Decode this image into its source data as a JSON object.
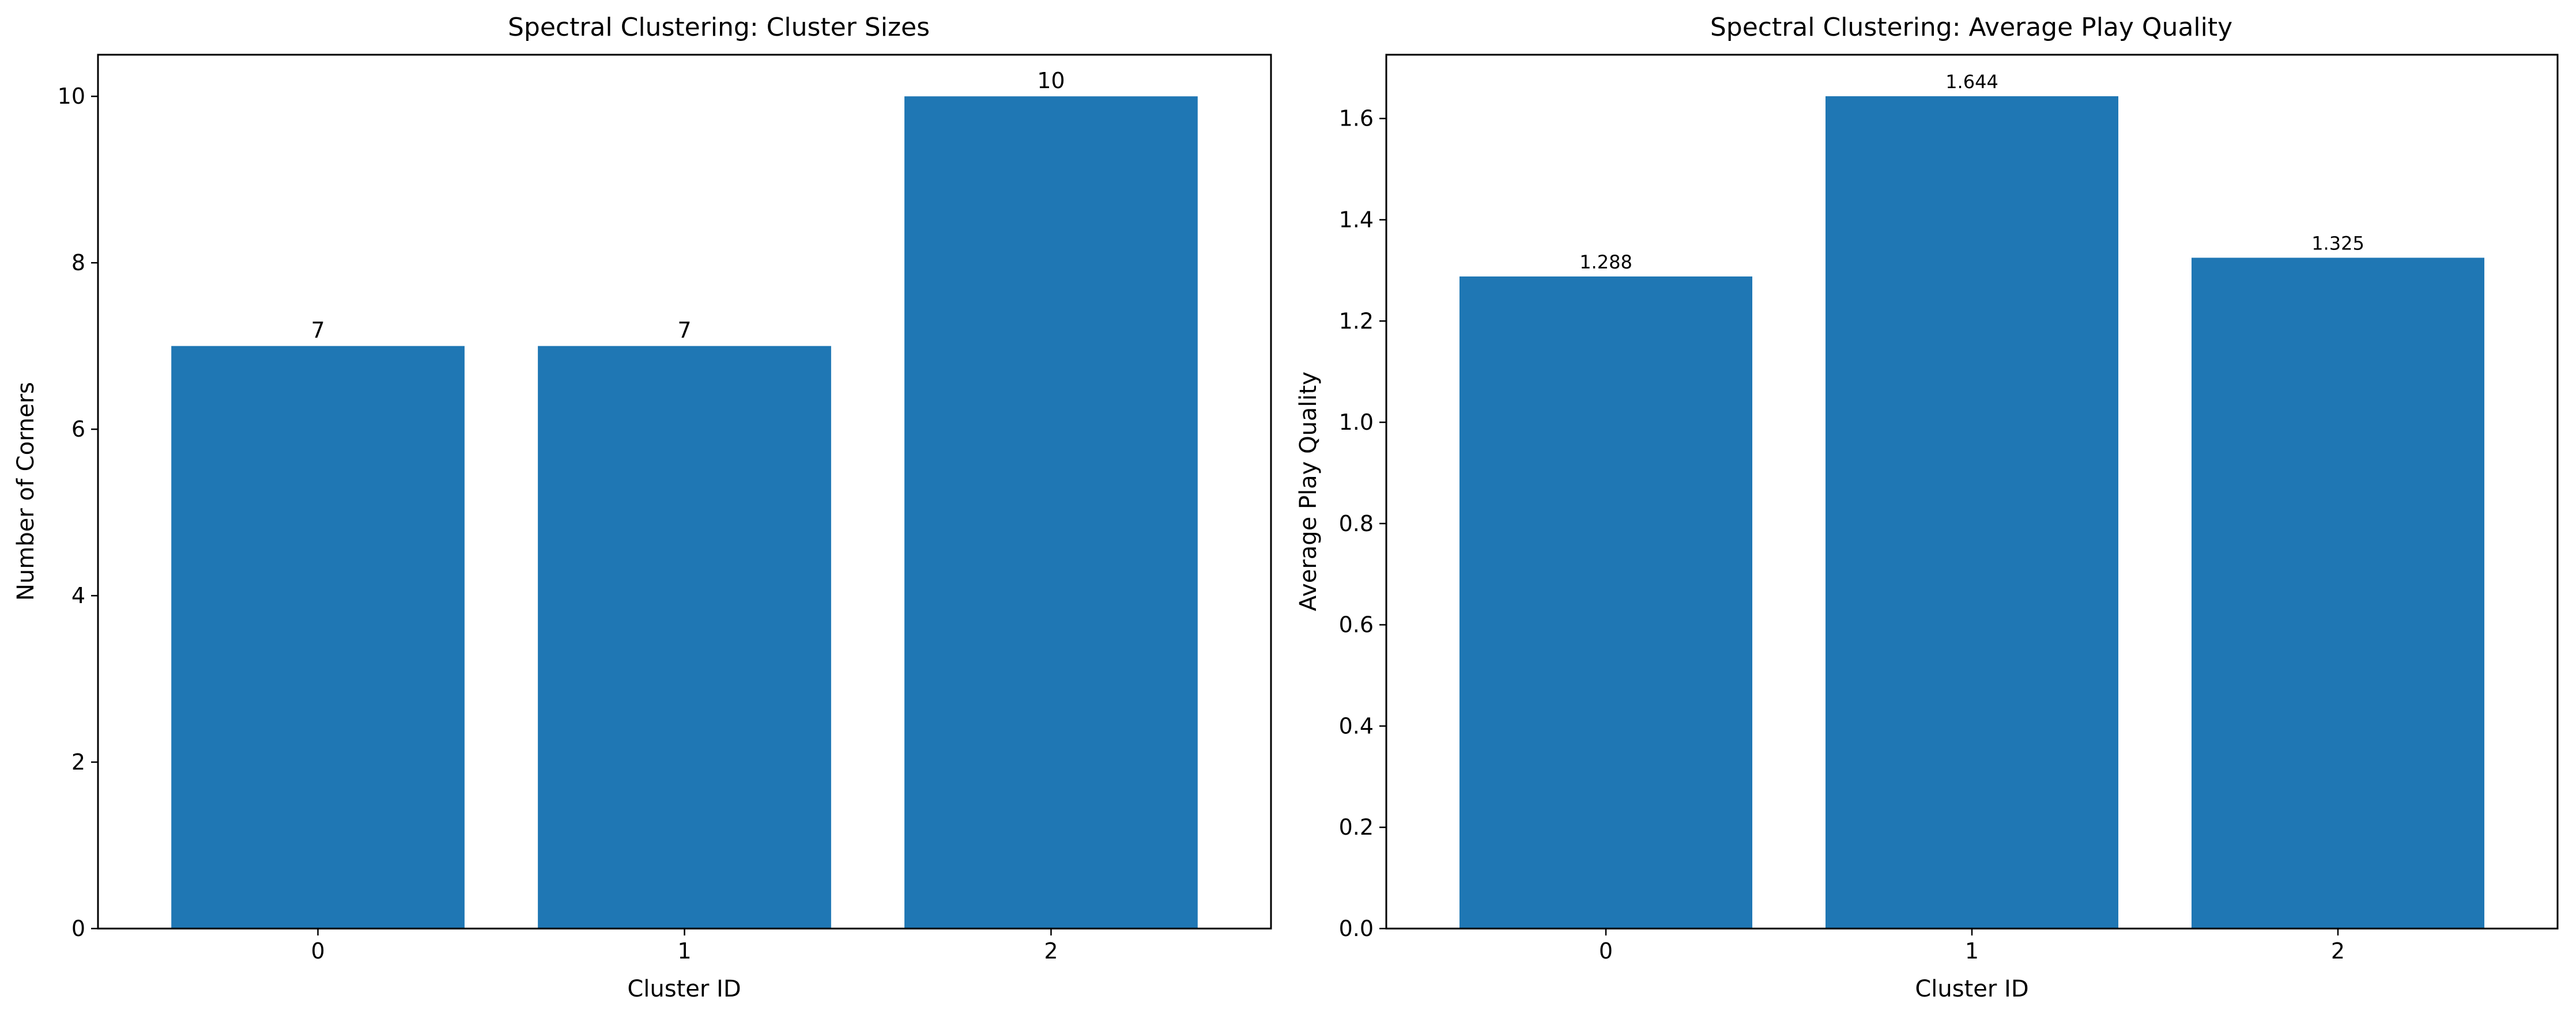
{
  "chart_data": [
    {
      "id": "cluster-sizes",
      "type": "bar",
      "title": "Spectral Clustering: Cluster Sizes",
      "xlabel": "Cluster ID",
      "ylabel": "Number of Corners",
      "categories": [
        "0",
        "1",
        "2"
      ],
      "values": [
        7,
        7,
        10
      ],
      "data_labels": [
        "7",
        "7",
        "10"
      ],
      "ylim": [
        0,
        10.5
      ],
      "yticks": [
        0,
        2,
        4,
        6,
        8,
        10
      ],
      "ytick_labels": [
        "0",
        "2",
        "4",
        "6",
        "8",
        "10"
      ],
      "grid": false,
      "bar_color": "#1f77b4"
    },
    {
      "id": "average-play-quality",
      "type": "bar",
      "title": "Spectral Clustering: Average Play Quality",
      "xlabel": "Cluster ID",
      "ylabel": "Average Play Quality",
      "categories": [
        "0",
        "1",
        "2"
      ],
      "values": [
        1.288,
        1.644,
        1.325
      ],
      "data_labels": [
        "1.288",
        "1.644",
        "1.325"
      ],
      "ylim": [
        0,
        1.726
      ],
      "yticks": [
        0,
        0.2,
        0.4,
        0.6,
        0.8,
        1.0,
        1.2,
        1.4,
        1.6
      ],
      "ytick_labels": [
        "0.0",
        "0.2",
        "0.4",
        "0.6",
        "0.8",
        "1.0",
        "1.2",
        "1.4",
        "1.6"
      ],
      "grid": false,
      "bar_color": "#1f77b4"
    }
  ]
}
